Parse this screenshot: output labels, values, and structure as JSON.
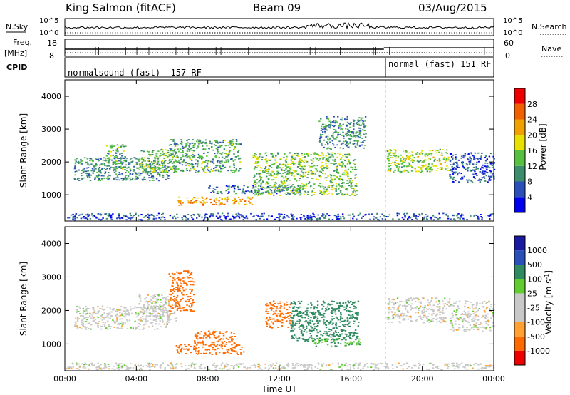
{
  "header": {
    "station": "King Salmon (fitACF)",
    "beam": "Beam 09",
    "date": "03/Aug/2015"
  },
  "aux_panels": {
    "nsky": {
      "label": "N.Sky",
      "tick_hi": "10^5",
      "tick_lo": "10^0"
    },
    "nsearch": {
      "label": "N.Search",
      "tick_hi": "10^5",
      "tick_lo": "10^0"
    },
    "freq": {
      "label": "Freq.",
      "unit": "[MHz]",
      "ticks": [
        "18",
        "8"
      ]
    },
    "nave": {
      "label": "Nave",
      "ticks": [
        "60",
        "0"
      ]
    },
    "cpid": {
      "label": "CPID",
      "segments": [
        {
          "text": "normalsound (fast) -157 RF",
          "start_hour": 0
        },
        {
          "text": "normal (fast) 151 RF",
          "start_hour": 17.85
        }
      ]
    }
  },
  "colors": {
    "power": [
      "#0000ee",
      "#2a4fb8",
      "#3c8c6e",
      "#58c040",
      "#e8e000",
      "#f0a000",
      "#f06000",
      "#ee0000"
    ],
    "velocity": [
      "#ee0000",
      "#ff6a00",
      "#ffa030",
      "#c8c8c8",
      "#c8c8c8",
      "#60cc30",
      "#2f8a60",
      "#2a4fb8",
      "#1a1aa0"
    ]
  },
  "chart_data": [
    {
      "type": "heatmap",
      "quantity": "Power",
      "ylabel": "Slant Range [km]",
      "ylim": [
        200,
        4500
      ],
      "yticks": [
        "1000",
        "2000",
        "3000",
        "4000"
      ],
      "colorbar": {
        "label": "Power [dB]",
        "ticks": [
          "4",
          "8",
          "12",
          "16",
          "20",
          "24",
          "28"
        ],
        "range": [
          0,
          32
        ]
      },
      "echo_regions": [
        {
          "t0": 0.5,
          "t1": 5.8,
          "r0": 1450,
          "r1": 2150,
          "value": 10
        },
        {
          "t0": 2.3,
          "t1": 3.4,
          "r0": 1800,
          "r1": 2550,
          "value": 12
        },
        {
          "t0": 4.1,
          "t1": 6.2,
          "r0": 1700,
          "r1": 2400,
          "value": 14
        },
        {
          "t0": 5.8,
          "t1": 9.8,
          "r0": 1700,
          "r1": 2700,
          "value": 12
        },
        {
          "t0": 6.2,
          "t1": 10.5,
          "r0": 700,
          "r1": 950,
          "value": 22
        },
        {
          "t0": 8.0,
          "t1": 13.5,
          "r0": 1050,
          "r1": 1300,
          "value": 8
        },
        {
          "t0": 10.5,
          "t1": 16.3,
          "r0": 1000,
          "r1": 2300,
          "value": 14
        },
        {
          "t0": 14.2,
          "t1": 16.8,
          "r0": 2400,
          "r1": 3400,
          "value": 10
        },
        {
          "t0": 18.0,
          "t1": 21.5,
          "r0": 1700,
          "r1": 2400,
          "value": 16
        },
        {
          "t0": 21.5,
          "t1": 24.0,
          "r0": 1400,
          "r1": 2300,
          "value": 6
        },
        {
          "t0": 0.0,
          "t1": 24.0,
          "r0": 250,
          "r1": 450,
          "value": 6
        }
      ]
    },
    {
      "type": "heatmap",
      "quantity": "Velocity",
      "ylabel": "Slant Range [km]",
      "xlabel": "Time UT",
      "ylim": [
        200,
        4500
      ],
      "yticks": [
        "1000",
        "2000",
        "3000",
        "4000"
      ],
      "xticks": [
        "00:00",
        "04:00",
        "08:00",
        "12:00",
        "16:00",
        "20:00",
        "00:00"
      ],
      "colorbar": {
        "label": "Velocity [m s^-1]",
        "ticks": [
          "1000",
          "500",
          "100",
          "25",
          "-25",
          "-100",
          "-500",
          "-1000"
        ]
      },
      "echo_regions": [
        {
          "t0": 0.5,
          "t1": 5.8,
          "r0": 1450,
          "r1": 2150,
          "value": 0
        },
        {
          "t0": 4.1,
          "t1": 6.2,
          "r0": 1700,
          "r1": 2500,
          "value": 0
        },
        {
          "t0": 5.8,
          "t1": 7.2,
          "r0": 2000,
          "r1": 3200,
          "value": -200
        },
        {
          "t0": 6.2,
          "t1": 10.0,
          "r0": 700,
          "r1": 1000,
          "value": -300
        },
        {
          "t0": 7.2,
          "t1": 9.5,
          "r0": 1000,
          "r1": 1400,
          "value": -150
        },
        {
          "t0": 11.2,
          "t1": 12.6,
          "r0": 1500,
          "r1": 2300,
          "value": -400
        },
        {
          "t0": 12.6,
          "t1": 16.4,
          "r0": 1100,
          "r1": 2300,
          "value": 300
        },
        {
          "t0": 13.8,
          "t1": 16.5,
          "r0": 950,
          "r1": 1200,
          "value": 100
        },
        {
          "t0": 18.0,
          "t1": 21.5,
          "r0": 1650,
          "r1": 2400,
          "value": 0
        },
        {
          "t0": 21.5,
          "t1": 24.0,
          "r0": 1400,
          "r1": 2300,
          "value": 0
        },
        {
          "t0": 0.0,
          "t1": 24.0,
          "r0": 250,
          "r1": 450,
          "value": 0
        }
      ]
    }
  ]
}
